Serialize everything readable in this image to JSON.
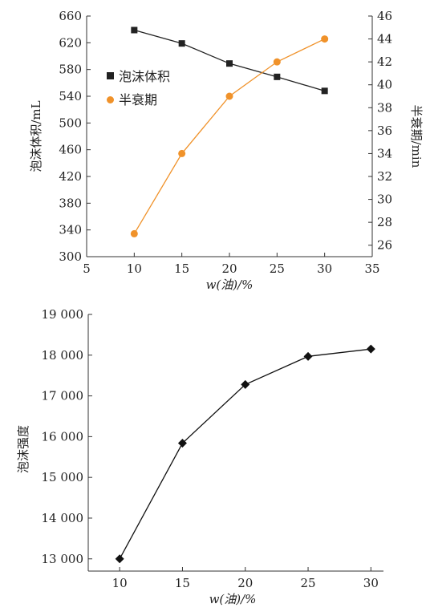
{
  "chart_data": [
    {
      "type": "line",
      "x": [
        10,
        15,
        20,
        25,
        30
      ],
      "xlabel": "w(油)/%",
      "xlim": [
        5,
        35
      ],
      "xticks": [
        5,
        10,
        15,
        20,
        25,
        30,
        35
      ],
      "ylabel": "泡沫体积/mL",
      "ylim": [
        300,
        660
      ],
      "yticks": [
        300,
        340,
        380,
        420,
        460,
        500,
        540,
        580,
        620,
        660
      ],
      "y2label": "半衰期/min",
      "y2lim": [
        25,
        46
      ],
      "y2ticks": [
        26,
        28,
        30,
        32,
        34,
        36,
        38,
        40,
        42,
        44,
        46
      ],
      "grid": false,
      "legend_position": "center-left",
      "series": [
        {
          "name": "泡沫体积",
          "axis": "left",
          "color": "#222222",
          "marker": "square",
          "values": [
            639,
            619,
            589,
            569,
            548
          ]
        },
        {
          "name": "半衰期",
          "axis": "right",
          "color": "#f0922a",
          "marker": "circle",
          "values": [
            27,
            34,
            39,
            42,
            44
          ]
        }
      ]
    },
    {
      "type": "line",
      "x": [
        10,
        15,
        20,
        25,
        30
      ],
      "xlabel": "w(油)/%",
      "xlim": [
        7.5,
        31
      ],
      "xticks": [
        10,
        15,
        20,
        25,
        30
      ],
      "ylabel": "泡沫强度",
      "ylim": [
        12700,
        19000
      ],
      "yticks": [
        13000,
        14000,
        15000,
        16000,
        17000,
        18000,
        19000
      ],
      "ytick_labels": [
        "13 000",
        "14 000",
        "15 000",
        "16 000",
        "17 000",
        "18 000",
        "19 000"
      ],
      "grid": false,
      "series": [
        {
          "color": "#111111",
          "marker": "diamond",
          "values": [
            13000,
            15840,
            17280,
            17970,
            18150
          ]
        }
      ]
    }
  ]
}
